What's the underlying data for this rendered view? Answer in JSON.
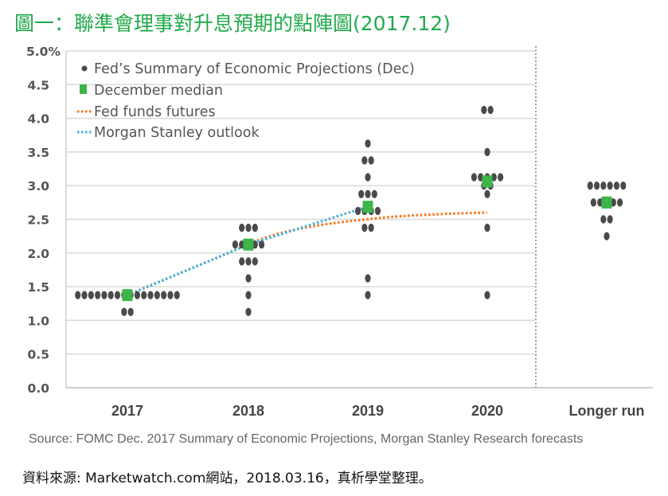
{
  "page_title": "圖一：聯準會理事對升息預期的點陣圖(2017.12)",
  "footnote": "資料來源: Marketwatch.com網站，2018.03.16，真析學堂整理。",
  "colors": {
    "title": "#22aa4a",
    "dots": "#4a4a4a",
    "median": "#3cb54a",
    "fed_funds_futures": "#f47a20",
    "morgan_stanley": "#4ab3dc",
    "grid": "#d9d9d9"
  },
  "chart_data": {
    "type": "scatter",
    "title": "",
    "xlabel": "",
    "ylabel": "",
    "ylim": [
      0,
      5
    ],
    "y_ticks": [
      "0.0",
      "0.5",
      "1.0",
      "1.5",
      "2.0",
      "2.5",
      "3.0",
      "3.5",
      "4.0",
      "4.5",
      "5.0%"
    ],
    "y_tick_values": [
      0,
      0.5,
      1.0,
      1.5,
      2.0,
      2.5,
      3.0,
      3.5,
      4.0,
      4.5,
      5.0
    ],
    "grid": true,
    "categories": [
      "2017",
      "2018",
      "2019",
      "2020",
      "Longer run"
    ],
    "legend_position": "top-left",
    "legend": [
      {
        "name": "Fed’s Summary of Economic Projections (Dec)",
        "marker": "dot"
      },
      {
        "name": "December median",
        "marker": "square"
      },
      {
        "name": "Fed funds futures",
        "marker": "dotted-line"
      },
      {
        "name": "Morgan Stanley outlook",
        "marker": "dotted-line"
      }
    ],
    "dot_plot": [
      {
        "category": "2017",
        "levels": [
          {
            "rate": 1.375,
            "count": 16
          },
          {
            "rate": 1.125,
            "count": 2
          }
        ]
      },
      {
        "category": "2018",
        "levels": [
          {
            "rate": 2.375,
            "count": 3
          },
          {
            "rate": 2.125,
            "count": 5
          },
          {
            "rate": 1.875,
            "count": 3
          },
          {
            "rate": 1.625,
            "count": 1
          },
          {
            "rate": 1.375,
            "count": 1
          },
          {
            "rate": 1.125,
            "count": 1
          }
        ]
      },
      {
        "category": "2019",
        "levels": [
          {
            "rate": 3.625,
            "count": 1
          },
          {
            "rate": 3.375,
            "count": 2
          },
          {
            "rate": 3.125,
            "count": 1
          },
          {
            "rate": 2.875,
            "count": 3
          },
          {
            "rate": 2.625,
            "count": 4
          },
          {
            "rate": 2.375,
            "count": 2
          },
          {
            "rate": 1.625,
            "count": 1
          },
          {
            "rate": 1.375,
            "count": 1
          }
        ]
      },
      {
        "category": "2020",
        "levels": [
          {
            "rate": 4.125,
            "count": 2
          },
          {
            "rate": 3.5,
            "count": 1
          },
          {
            "rate": 3.125,
            "count": 5
          },
          {
            "rate": 3.0,
            "count": 2
          },
          {
            "rate": 2.875,
            "count": 1
          },
          {
            "rate": 2.375,
            "count": 1
          },
          {
            "rate": 1.375,
            "count": 1
          }
        ]
      },
      {
        "category": "Longer run",
        "levels": [
          {
            "rate": 3.0,
            "count": 6
          },
          {
            "rate": 2.75,
            "count": 5
          },
          {
            "rate": 2.5,
            "count": 2
          },
          {
            "rate": 2.25,
            "count": 1
          }
        ]
      }
    ],
    "series": [
      {
        "name": "December median",
        "type": "square",
        "categories": [
          "2017",
          "2018",
          "2019",
          "2020",
          "Longer run"
        ],
        "values": [
          1.375,
          2.125,
          2.6875,
          3.0625,
          2.75
        ]
      },
      {
        "name": "Fed funds futures",
        "type": "line",
        "categories": [
          "2017",
          "2018",
          "2019",
          "2020"
        ],
        "values": [
          1.375,
          2.125,
          2.5,
          2.6
        ]
      },
      {
        "name": "Morgan Stanley outlook",
        "type": "line",
        "categories": [
          "2017",
          "2018",
          "2019"
        ],
        "values": [
          1.375,
          2.125,
          2.69
        ]
      }
    ],
    "source": "Source: FOMC Dec. 2017 Summary of Economic Projections, Morgan Stanley Research forecasts"
  }
}
